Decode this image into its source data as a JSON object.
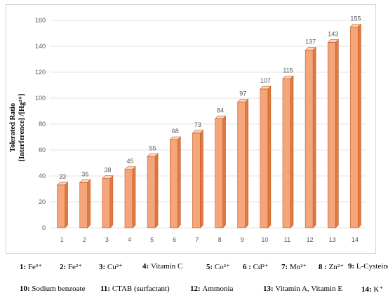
{
  "chart_data": {
    "type": "bar",
    "categories": [
      "1",
      "2",
      "3",
      "4",
      "5",
      "6",
      "7",
      "8",
      "9",
      "10",
      "11",
      "12",
      "13",
      "14"
    ],
    "values": [
      33,
      35,
      38,
      45,
      55,
      68,
      73,
      84,
      97,
      107,
      115,
      137,
      143,
      155
    ],
    "ylabel_line1": "Tolerated Ratio",
    "ylabel_line2": "[Interference] /[Hg²⁺]",
    "ylim": [
      0,
      160
    ],
    "yticks": [
      0,
      20,
      40,
      60,
      80,
      100,
      120,
      140,
      160
    ],
    "grid": true,
    "bar_color": "#f4a57a",
    "bar_side_color": "#e07b43",
    "bar_top_color": "#fbd3bb",
    "bar_stroke": "#c45a1e"
  },
  "legend": [
    {
      "num": "1:",
      "name": "Fe³⁺"
    },
    {
      "num": "2:",
      "name": "Fe²⁺"
    },
    {
      "num": "3:",
      "name": "Cu²⁺"
    },
    {
      "num": "4:",
      "name": "Vitamin C"
    },
    {
      "num": "5:",
      "name": "Co²⁺"
    },
    {
      "num": "6 :",
      "name": "Cd²⁺"
    },
    {
      "num": "7:",
      "name": "Mn²⁺"
    },
    {
      "num": "8 :",
      "name": "Zn²⁺"
    },
    {
      "num": "9:",
      "name": "L-Cysteine"
    },
    {
      "num": "10:",
      "name": "Sodium benzoate"
    },
    {
      "num": "11:",
      "name": "CTAB (surfactant)"
    },
    {
      "num": "12:",
      "name": "Ammonia"
    },
    {
      "num": "13:",
      "name": "Vitamin A, Vitamin E"
    },
    {
      "num": "14:",
      "name": "K⁺"
    }
  ]
}
